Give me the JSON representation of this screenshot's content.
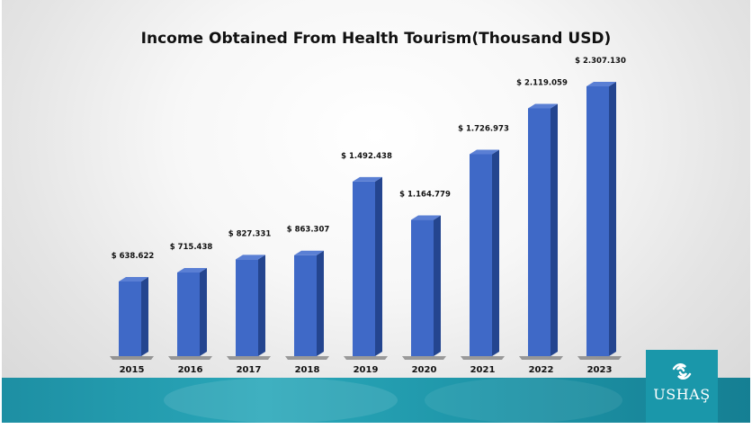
{
  "brand": {
    "name": "USHAŞ",
    "icon": "ushas-wave-logo-icon"
  },
  "colors": {
    "bar_front": "#3f69c7",
    "bar_top": "#5a7fd4",
    "bar_side": "#24458f",
    "band": "#1f99ac"
  },
  "chart_data": {
    "type": "bar",
    "title": "Income Obtained From Health Tourism(Thousand USD)",
    "xlabel": "",
    "ylabel": "",
    "categories": [
      "2015",
      "2016",
      "2017",
      "2018",
      "2019",
      "2020",
      "2021",
      "2022",
      "2023"
    ],
    "values": [
      638622,
      715438,
      827331,
      863307,
      1492438,
      1164779,
      1726973,
      2119059,
      2307130
    ],
    "value_labels": [
      "$ 638.622",
      "$ 715.438",
      "$ 827.331",
      "$ 863.307",
      "$ 1.492.438",
      "$ 1.164.779",
      "$ 1.726.973",
      "$ 2.119.059",
      "$ 2.307.130"
    ],
    "ylim": [
      0,
      2307130
    ],
    "grid": false,
    "legend": "none",
    "style": "3d"
  }
}
